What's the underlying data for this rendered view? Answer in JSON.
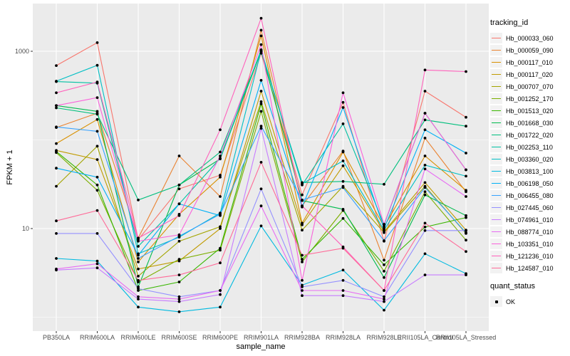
{
  "figure": {
    "background": "#FFFFFF",
    "panel_background": "#EBEBEB",
    "grid_color": "#FFFFFF",
    "tick_color": "#333333",
    "tick_label_color": "#4D4D4D",
    "point_color": "#000000"
  },
  "axes": {
    "x_title": "sample_name",
    "y_title": "FPKM + 1"
  },
  "legend": {
    "tracking_title": "tracking_id",
    "quant_title": "quant_status",
    "quant_ok_label": "OK"
  },
  "chart_data": {
    "type": "line",
    "title": "",
    "xlabel": "sample_name",
    "ylabel": "FPKM + 1",
    "y_scale": "log10",
    "grid": true,
    "legend_position": "right",
    "y_major_ticks": [
      {
        "label": "1000",
        "value": 1000
      },
      {
        "label": "10",
        "value": 10
      }
    ],
    "y_minor_gridline_values": [
      100,
      1
    ],
    "y_approx_range": [
      0.8,
      3400
    ],
    "x_categories": [
      "PB350LA",
      "RRIM600LA",
      "RRIM600LE",
      "RRIM600SE",
      "RRIM600PE",
      "RRIM901LA",
      "RRIM928BA",
      "RRIM928LA",
      "RRIM928LE",
      "RRII105LA_Control",
      "RRII105LA_Stressed"
    ],
    "quant_status_marker": "point",
    "series": [
      {
        "name": "Hb_000033_060",
        "color": "#F8766D",
        "values": [
          690,
          1250,
          7.5,
          28,
          40,
          950,
          24,
          265,
          7.2,
          355,
          180
        ]
      },
      {
        "name": "Hb_000059_090",
        "color": "#EA8331",
        "values": [
          138,
          200,
          7.8,
          66,
          23,
          1730,
          18,
          75,
          4.4,
          105,
          26
        ]
      },
      {
        "name": "Hb_000117_010",
        "color": "#D89000",
        "values": [
          91,
          170,
          4.2,
          14.5,
          38,
          1490,
          11.5,
          73,
          10.5,
          66,
          27
        ]
      },
      {
        "name": "Hb_000117_020",
        "color": "#C09B00",
        "values": [
          76,
          60,
          3.5,
          4.3,
          10,
          355,
          11,
          51,
          9.2,
          33,
          9.6
        ]
      },
      {
        "name": "Hb_000707_070",
        "color": "#A3A500",
        "values": [
          30,
          85,
          2.9,
          7.2,
          10.5,
          270,
          9.6,
          30,
          9.0,
          30,
          8.8
        ]
      },
      {
        "name": "Hb_001252_170",
        "color": "#7CAE00",
        "values": [
          72,
          27,
          2.5,
          4.5,
          5.7,
          210,
          4.2,
          16,
          3.3,
          26,
          7.4
        ]
      },
      {
        "name": "Hb_001513_020",
        "color": "#39B600",
        "values": [
          74,
          31,
          2.0,
          2.5,
          6.0,
          255,
          4.5,
          13,
          3.9,
          10.4,
          13.3
        ]
      },
      {
        "name": "Hb_001668_030",
        "color": "#00BB4E",
        "values": [
          244,
          210,
          2.2,
          31,
          61,
          1000,
          20.7,
          16.5,
          2.8,
          24,
          14
        ]
      },
      {
        "name": "Hb_001722_020",
        "color": "#00BF7D",
        "values": [
          230,
          195,
          21,
          31,
          73,
          990,
          33,
          34,
          31.6,
          168,
          143
        ]
      },
      {
        "name": "Hb_002253_110",
        "color": "#00C1A3",
        "values": [
          455,
          437,
          6.3,
          19,
          62,
          1040,
          31,
          152,
          11,
          200,
          46
        ]
      },
      {
        "name": "Hb_003360_020",
        "color": "#00BFC4",
        "values": [
          460,
          695,
          5.2,
          8,
          15,
          1020,
          32,
          58,
          9.6,
          52,
          39
        ]
      },
      {
        "name": "Hb_003813_100",
        "color": "#00BAE0",
        "values": [
          4.6,
          4.3,
          1.3,
          1.15,
          1.3,
          10.7,
          2.3,
          3.4,
          1.2,
          5.2,
          3.1
        ]
      },
      {
        "name": "Hb_006198_050",
        "color": "#00B0F6",
        "values": [
          48,
          38,
          5.0,
          19,
          14,
          470,
          17.5,
          232,
          10,
          130,
          71
        ]
      },
      {
        "name": "Hb_006455_080",
        "color": "#35A2FF",
        "values": [
          140,
          125,
          4.6,
          8.2,
          14.5,
          143,
          21,
          29,
          7.3,
          29,
          9.0
        ]
      },
      {
        "name": "Hb_027445_060",
        "color": "#9590FF",
        "values": [
          8.8,
          8.8,
          2.1,
          1.7,
          2.0,
          28,
          2.2,
          2.6,
          1.7,
          9.5,
          9.5
        ]
      },
      {
        "name": "Hb_074961_010",
        "color": "#C77CFF",
        "values": [
          3.4,
          3.6,
          1.6,
          1.5,
          1.8,
          135,
          1.75,
          1.75,
          1.5,
          3.0,
          3.0
        ]
      },
      {
        "name": "Hb_088774_010",
        "color": "#E76BF3",
        "values": [
          3.5,
          4.0,
          1.7,
          1.6,
          2.0,
          18,
          2.0,
          2.0,
          1.6,
          47,
          23
        ]
      },
      {
        "name": "Hb_103351_010",
        "color": "#FA62DB",
        "values": [
          244,
          300,
          7.2,
          8.5,
          66,
          1190,
          2.6,
          340,
          11.2,
          200,
          46
        ]
      },
      {
        "name": "Hb_121236_010",
        "color": "#FF62BC",
        "values": [
          340,
          450,
          7.8,
          14,
          130,
          2360,
          18,
          6.2,
          2.0,
          615,
          590
        ]
      },
      {
        "name": "Hb_124587_010",
        "color": "#FF6A98",
        "values": [
          12.2,
          16,
          2.6,
          3.0,
          4.1,
          56,
          5.0,
          6.0,
          2.0,
          11.5,
          5.5
        ]
      }
    ],
    "quant_status_items": [
      "OK"
    ]
  }
}
